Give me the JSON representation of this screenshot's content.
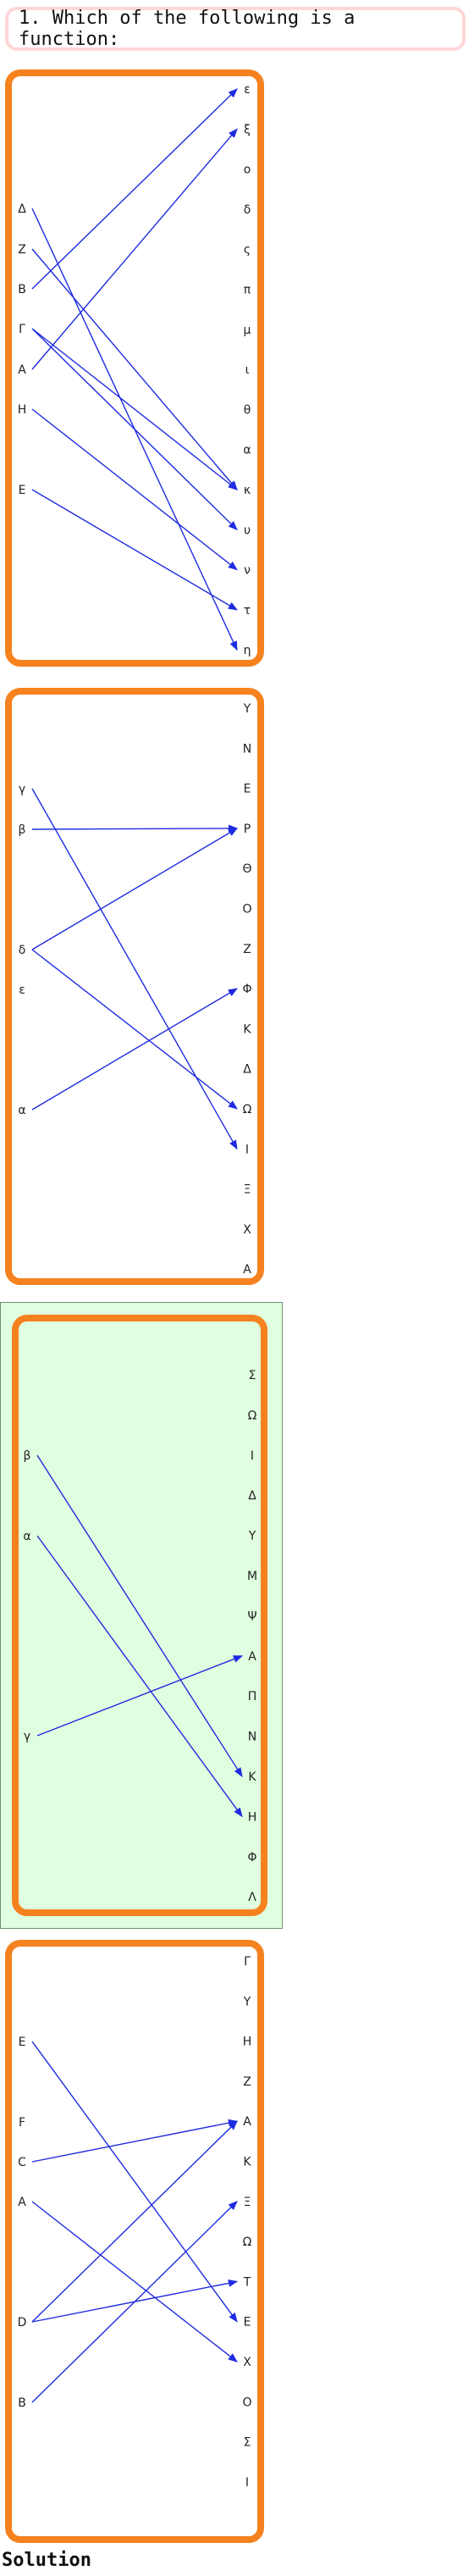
{
  "question": "1. Which of the following is a function:",
  "solution_label": "Solution",
  "options": [
    {
      "selected": false,
      "left": [
        "Δ",
        "Z",
        "B",
        "Γ",
        "A",
        "H",
        "E"
      ],
      "right": [
        "ε",
        "ξ",
        "o",
        "δ",
        "ς",
        "π",
        "μ",
        "ι",
        "θ",
        "α",
        "κ",
        "υ",
        "ν",
        "τ",
        "η"
      ],
      "edges": [
        [
          "Δ",
          "η"
        ],
        [
          "Z",
          "κ"
        ],
        [
          "B",
          "ε"
        ],
        [
          "Γ",
          "κ"
        ],
        [
          "Γ",
          "υ"
        ],
        [
          "A",
          "ξ"
        ],
        [
          "H",
          "ν"
        ],
        [
          "E",
          "τ"
        ]
      ]
    },
    {
      "selected": false,
      "left": [
        "γ",
        "β",
        "δ",
        "ε",
        "α"
      ],
      "right": [
        "Y",
        "N",
        "E",
        "P",
        "Θ",
        "O",
        "Z",
        "Φ",
        "K",
        "Δ",
        "Ω",
        "I",
        "Ξ",
        "X",
        "A"
      ],
      "edges": [
        [
          "γ",
          "I"
        ],
        [
          "β",
          "P"
        ],
        [
          "δ",
          "P"
        ],
        [
          "δ",
          "Ω"
        ],
        [
          "α",
          "Φ"
        ]
      ]
    },
    {
      "selected": true,
      "left": [
        "β",
        "α",
        "γ"
      ],
      "right": [
        "Σ",
        "Ω",
        "I",
        "Δ",
        "Y",
        "M",
        "Ψ",
        "A",
        "Π",
        "N",
        "K",
        "H",
        "Φ",
        "Λ"
      ],
      "edges": [
        [
          "β",
          "K"
        ],
        [
          "α",
          "H"
        ],
        [
          "γ",
          "A"
        ]
      ]
    },
    {
      "selected": false,
      "left": [
        "E",
        "F",
        "C",
        "A",
        "D",
        "B"
      ],
      "right": [
        "Γ",
        "Y",
        "H",
        "Z",
        "A",
        "K",
        "Ξ",
        "Ω",
        "T",
        "E",
        "X",
        "O",
        "Σ",
        "I"
      ],
      "edges": [
        [
          "E",
          "E"
        ],
        [
          "C",
          "A"
        ],
        [
          "A",
          "X"
        ],
        [
          "D",
          "A"
        ],
        [
          "D",
          "T"
        ],
        [
          "B",
          "Ξ"
        ]
      ]
    }
  ]
}
